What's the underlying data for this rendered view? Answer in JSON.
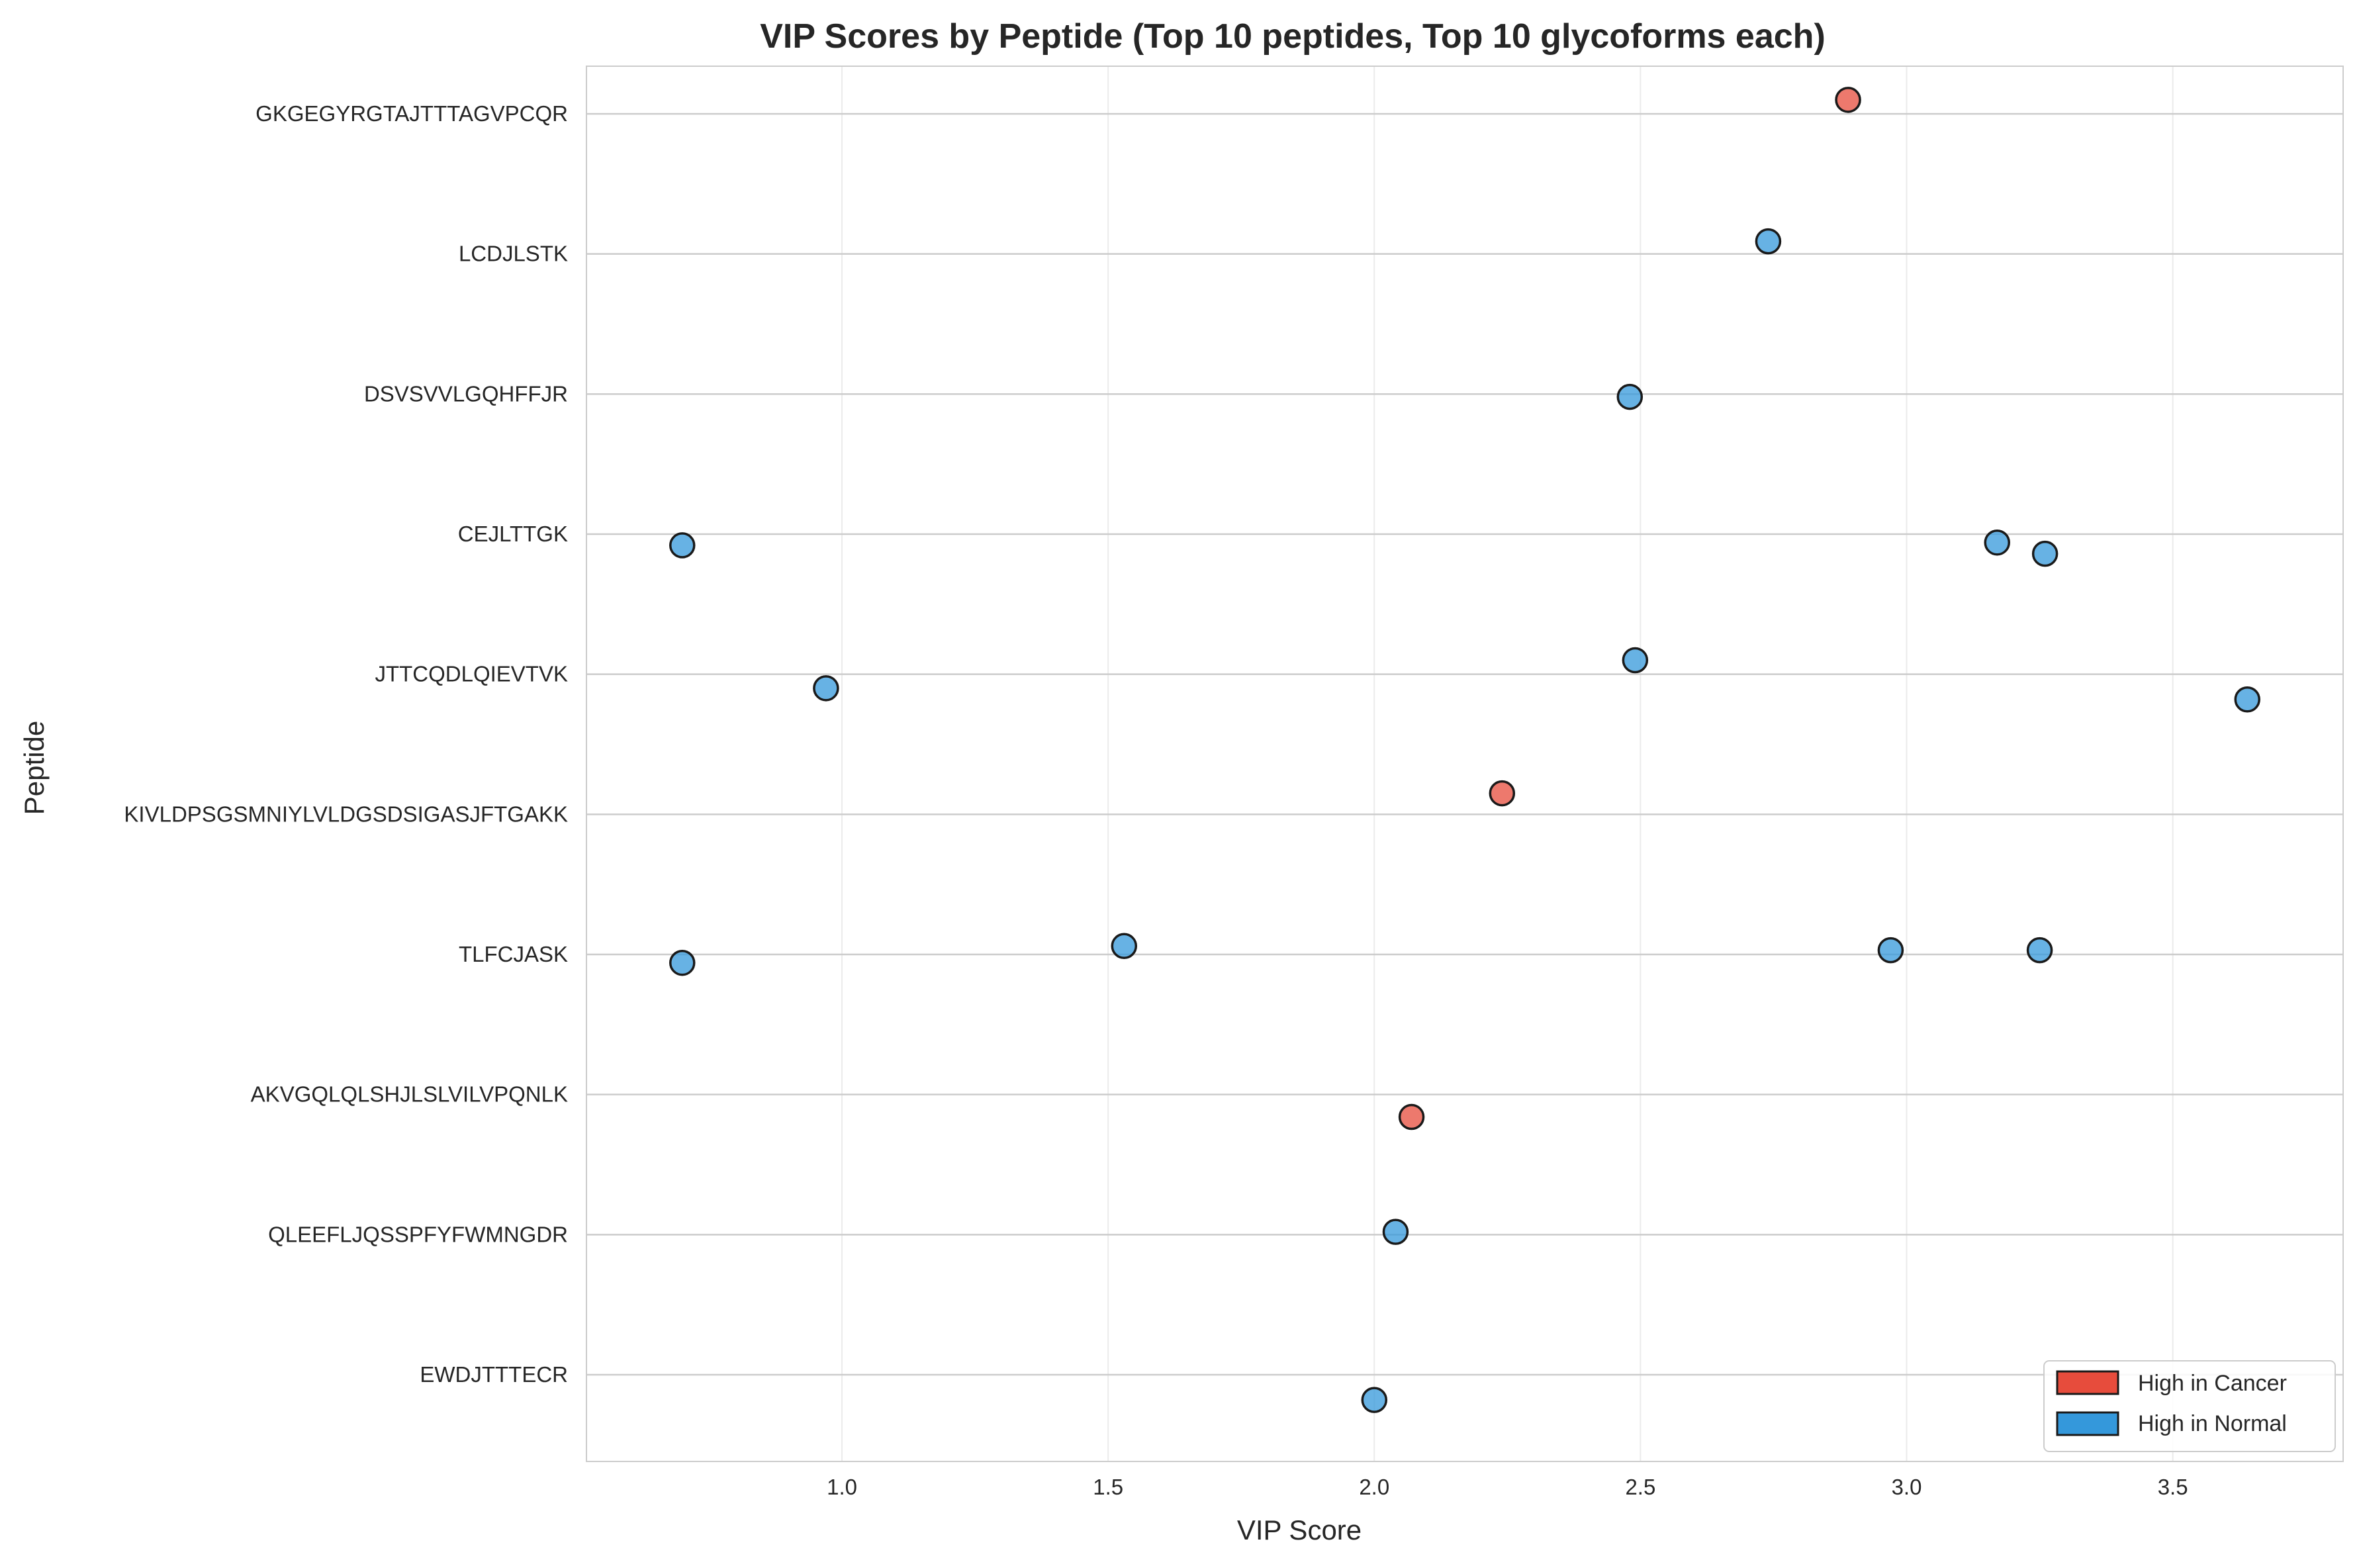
{
  "chart_data": {
    "type": "scatter",
    "title": "VIP Scores by Peptide (Top 10 peptides, Top 10 glycoforms each)",
    "xlabel": "VIP Score",
    "ylabel": "Peptide",
    "xlim": [
      0.52,
      3.82
    ],
    "x_ticks": [
      "1.0",
      "1.5",
      "2.0",
      "2.5",
      "3.0",
      "3.5"
    ],
    "x_tick_values": [
      1.0,
      1.5,
      2.0,
      2.5,
      3.0,
      3.5
    ],
    "categories": [
      "GKGEGYRGTAJTTTAGVPCQR",
      "LCDJLSTK",
      "DSVSVVLGQHFFJR",
      "CEJLTTGK",
      "JTTCQDLQIEVTVK",
      "KIVLDPSGSMNIYLVLDGSDSIGASJFTGAKK",
      "TLFCJASK",
      "AKVGQLQLSHJLSLVILVPQNLK",
      "QLEEFLJQSSPFYFWMNGDR",
      "EWDJTTTECR"
    ],
    "grid": true,
    "legend_position": "lower-right",
    "colors": {
      "cancer": "#e74c3c",
      "normal": "#3498db",
      "edge": "#1a1a1a"
    },
    "series": [
      {
        "name": "High in Cancer",
        "color": "#e74c3c",
        "points": [
          {
            "peptide": "GKGEGYRGTAJTTTAGVPCQR",
            "x": 2.89,
            "jitter": -0.1
          },
          {
            "peptide": "KIVLDPSGSMNIYLVLDGSDSIGASJFTGAKK",
            "x": 2.24,
            "jitter": -0.15
          },
          {
            "peptide": "AKVGQLQLSHJLSLVILVPQNLK",
            "x": 2.07,
            "jitter": 0.16
          }
        ]
      },
      {
        "name": "High in Normal",
        "color": "#3498db",
        "points": [
          {
            "peptide": "LCDJLSTK",
            "x": 2.74,
            "jitter": -0.09
          },
          {
            "peptide": "DSVSVVLGQHFFJR",
            "x": 2.48,
            "jitter": 0.02
          },
          {
            "peptide": "CEJLTTGK",
            "x": 0.7,
            "jitter": 0.08
          },
          {
            "peptide": "CEJLTTGK",
            "x": 3.17,
            "jitter": 0.06
          },
          {
            "peptide": "CEJLTTGK",
            "x": 3.26,
            "jitter": 0.14
          },
          {
            "peptide": "JTTCQDLQIEVTVK",
            "x": 0.97,
            "jitter": 0.1
          },
          {
            "peptide": "JTTCQDLQIEVTVK",
            "x": 2.49,
            "jitter": -0.1
          },
          {
            "peptide": "JTTCQDLQIEVTVK",
            "x": 3.64,
            "jitter": 0.18
          },
          {
            "peptide": "TLFCJASK",
            "x": 0.7,
            "jitter": 0.06
          },
          {
            "peptide": "TLFCJASK",
            "x": 1.53,
            "jitter": -0.06
          },
          {
            "peptide": "TLFCJASK",
            "x": 2.97,
            "jitter": -0.03
          },
          {
            "peptide": "TLFCJASK",
            "x": 3.25,
            "jitter": -0.03
          },
          {
            "peptide": "QLEEFLJQSSPFYFWMNGDR",
            "x": 2.04,
            "jitter": -0.02
          },
          {
            "peptide": "EWDJTTTECR",
            "x": 2.0,
            "jitter": 0.18
          }
        ]
      }
    ],
    "legend": [
      {
        "label": "High in Cancer",
        "color": "#e74c3c"
      },
      {
        "label": "High in Normal",
        "color": "#3498db"
      }
    ]
  }
}
